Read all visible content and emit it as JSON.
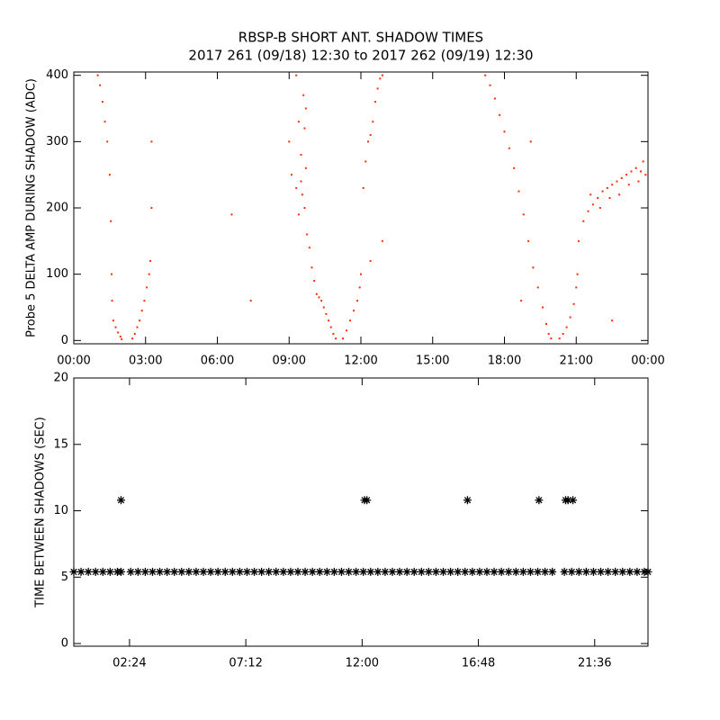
{
  "chart_data": [
    {
      "type": "scatter",
      "title": "RBSP-B SHORT ANT. SHADOW TIMES",
      "subtitle": "2017 261 (09/18) 12:30 to 2017 262 (09/19) 12:30",
      "y_label": "Probe 5 DELTA AMP DURING SHADOW (ADC)",
      "color": "#ff2a00",
      "xlim": [
        0,
        24
      ],
      "xticks": [
        {
          "value": 0,
          "label": "00:00"
        },
        {
          "value": 3,
          "label": "03:00"
        },
        {
          "value": 6,
          "label": "06:00"
        },
        {
          "value": 9,
          "label": "09:00"
        },
        {
          "value": 12,
          "label": "12:00"
        },
        {
          "value": 15,
          "label": "15:00"
        },
        {
          "value": 18,
          "label": "18:00"
        },
        {
          "value": 21,
          "label": "21:00"
        },
        {
          "value": 24,
          "label": "00:00"
        }
      ],
      "ylim": [
        -5,
        405
      ],
      "yticks": [
        0,
        100,
        200,
        300,
        400
      ],
      "x": [
        1.0,
        1.1,
        1.2,
        1.3,
        1.4,
        1.5,
        1.55,
        1.58,
        1.6,
        1.65,
        1.75,
        1.85,
        1.95,
        2.0,
        2.45,
        2.55,
        2.65,
        2.75,
        2.85,
        2.95,
        3.05,
        3.15,
        3.2,
        3.25,
        3.25,
        9.7,
        6.6,
        7.4,
        9.0,
        9.1,
        9.3,
        9.4,
        9.5,
        9.55,
        9.65,
        9.75,
        9.85,
        9.95,
        10.05,
        10.15,
        10.25,
        10.35,
        10.45,
        10.55,
        10.65,
        10.75,
        10.85,
        10.95,
        9.6,
        9.65,
        9.5,
        9.4,
        9.3,
        9.7,
        11.25,
        11.4,
        11.55,
        11.7,
        11.85,
        11.95,
        12.0,
        12.1,
        12.2,
        12.3,
        12.4,
        12.5,
        12.6,
        12.7,
        12.8,
        12.9,
        12.4,
        12.9,
        17.2,
        17.4,
        17.6,
        17.8,
        18.0,
        18.2,
        18.4,
        18.6,
        18.8,
        19.0,
        19.2,
        19.4,
        19.6,
        19.75,
        19.85,
        19.95,
        19.1,
        18.7,
        20.3,
        20.45,
        20.6,
        20.75,
        20.9,
        21.0,
        21.05,
        21.1,
        21.3,
        21.5,
        21.7,
        21.9,
        22.1,
        22.3,
        22.5,
        22.7,
        22.9,
        23.1,
        23.3,
        23.5,
        23.7,
        23.9,
        22.4,
        22.8,
        23.2,
        23.6,
        23.8,
        22.0,
        21.6,
        22.5
      ],
      "values": [
        400,
        385,
        360,
        330,
        300,
        250,
        180,
        100,
        60,
        30,
        20,
        12,
        6,
        2,
        3,
        10,
        20,
        30,
        45,
        60,
        80,
        100,
        120,
        200,
        300,
        350,
        190,
        60,
        300,
        250,
        400,
        330,
        280,
        220,
        200,
        160,
        140,
        110,
        90,
        70,
        65,
        60,
        50,
        40,
        30,
        20,
        10,
        3,
        370,
        320,
        240,
        190,
        230,
        260,
        3,
        15,
        30,
        45,
        60,
        80,
        100,
        230,
        270,
        300,
        310,
        330,
        360,
        380,
        395,
        400,
        120,
        150,
        400,
        385,
        365,
        340,
        315,
        290,
        260,
        225,
        190,
        150,
        110,
        80,
        50,
        25,
        10,
        3,
        300,
        60,
        3,
        10,
        20,
        35,
        55,
        80,
        100,
        150,
        180,
        195,
        205,
        215,
        225,
        230,
        235,
        240,
        245,
        250,
        255,
        260,
        255,
        250,
        215,
        220,
        235,
        240,
        270,
        200,
        220,
        30
      ]
    },
    {
      "type": "scatter",
      "y_label": "TIME BETWEEN SHADOWS (SEC)",
      "color": "#000000",
      "xlim": [
        0.1,
        23.8
      ],
      "xticks": [
        {
          "value": 2.4,
          "label": "02:24"
        },
        {
          "value": 7.2,
          "label": "07:12"
        },
        {
          "value": 12,
          "label": "12:00"
        },
        {
          "value": 16.8,
          "label": "16:48"
        },
        {
          "value": 21.6,
          "label": "21:36"
        }
      ],
      "ylim": [
        -0.2,
        20
      ],
      "yticks": [
        0,
        5,
        10,
        15,
        20
      ],
      "x": [
        0.1,
        0.4,
        0.7,
        1.0,
        1.3,
        1.6,
        1.9,
        2.05,
        2.45,
        2.75,
        3.05,
        3.35,
        3.65,
        3.95,
        4.25,
        4.55,
        4.85,
        5.15,
        5.45,
        5.75,
        6.05,
        6.35,
        6.65,
        6.95,
        7.25,
        7.55,
        7.85,
        8.15,
        8.45,
        8.75,
        9.05,
        9.35,
        9.65,
        9.95,
        10.25,
        10.55,
        10.85,
        11.15,
        11.45,
        11.75,
        12.05,
        12.35,
        12.65,
        12.95,
        13.25,
        13.55,
        13.85,
        14.15,
        14.45,
        14.75,
        15.05,
        15.35,
        15.65,
        15.95,
        16.25,
        16.55,
        16.85,
        17.15,
        17.45,
        17.75,
        18.05,
        18.35,
        18.65,
        18.95,
        19.25,
        19.55,
        19.85,
        20.35,
        20.65,
        20.95,
        21.25,
        21.55,
        21.85,
        22.15,
        22.45,
        22.75,
        23.05,
        23.35,
        23.65,
        23.8,
        2.05,
        12.1,
        12.2,
        16.35,
        19.3,
        20.4,
        20.5,
        20.7
      ],
      "values": [
        5.4,
        5.4,
        5.4,
        5.4,
        5.4,
        5.4,
        5.4,
        5.4,
        5.4,
        5.4,
        5.4,
        5.4,
        5.4,
        5.4,
        5.4,
        5.4,
        5.4,
        5.4,
        5.4,
        5.4,
        5.4,
        5.4,
        5.4,
        5.4,
        5.4,
        5.4,
        5.4,
        5.4,
        5.4,
        5.4,
        5.4,
        5.4,
        5.4,
        5.4,
        5.4,
        5.4,
        5.4,
        5.4,
        5.4,
        5.4,
        5.4,
        5.4,
        5.4,
        5.4,
        5.4,
        5.4,
        5.4,
        5.4,
        5.4,
        5.4,
        5.4,
        5.4,
        5.4,
        5.4,
        5.4,
        5.4,
        5.4,
        5.4,
        5.4,
        5.4,
        5.4,
        5.4,
        5.4,
        5.4,
        5.4,
        5.4,
        5.4,
        5.4,
        5.4,
        5.4,
        5.4,
        5.4,
        5.4,
        5.4,
        5.4,
        5.4,
        5.4,
        5.4,
        5.4,
        5.4,
        10.8,
        10.8,
        10.8,
        10.8,
        10.8,
        10.8,
        10.8,
        10.8
      ]
    }
  ]
}
